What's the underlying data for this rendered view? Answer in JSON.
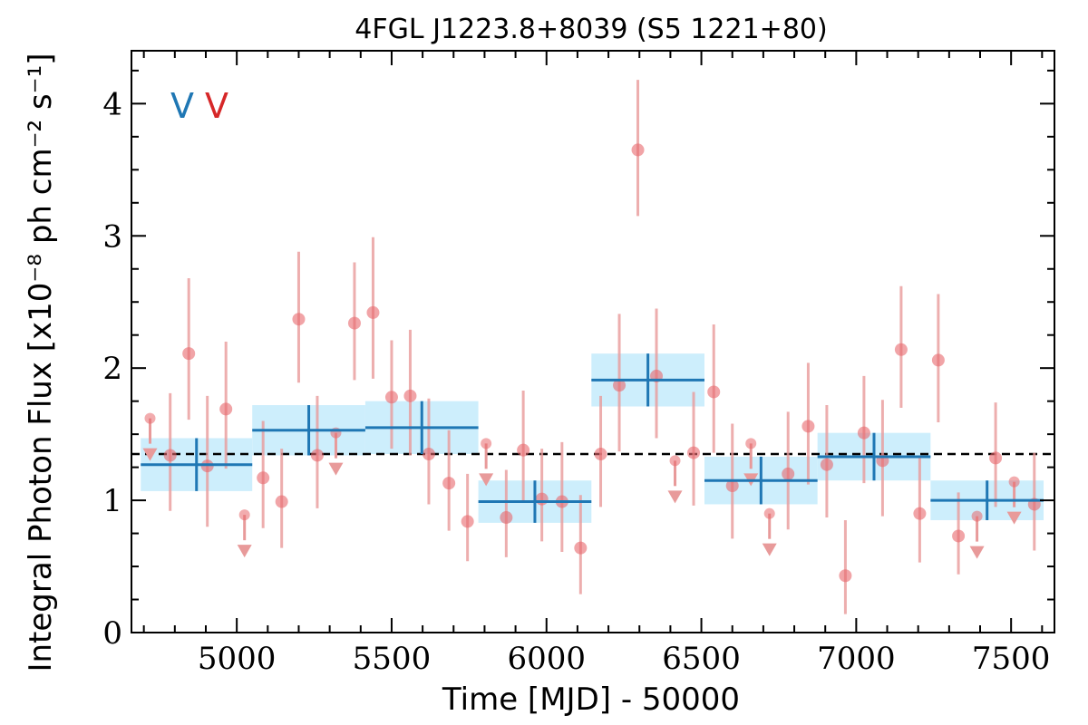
{
  "chart_data": {
    "type": "scatter",
    "title": "4FGL J1223.8+8039 (S5 1221+80)",
    "xlabel": "Time [MJD] - 50000",
    "ylabel": "Integral Photon Flux [x10⁻⁸ ph cm⁻² s⁻¹]",
    "xlim": [
      4660,
      7640
    ],
    "ylim": [
      0,
      4.4
    ],
    "x_ticks": [
      5000,
      5500,
      6000,
      6500,
      7000,
      7500
    ],
    "y_ticks": [
      0,
      1,
      2,
      3,
      4
    ],
    "grid": false,
    "variability_flags": [
      {
        "text": "V",
        "color": "#1f77b4"
      },
      {
        "text": "V",
        "color": "#d62728"
      }
    ],
    "mean_flux": 1.35,
    "colors": {
      "points": "#e8686c",
      "points_error": "#e89a9a",
      "blocks": "#1f77b4",
      "block_band": "#cdeefc",
      "mean_line": "#000000"
    },
    "series": [
      {
        "name": "",
        "kind": "bayesian_blocks",
        "blocks": [
          {
            "x_start": 4690,
            "x_end": 5050,
            "value": 1.27,
            "err": 0.2
          },
          {
            "x_start": 5050,
            "x_end": 5415,
            "value": 1.53,
            "err": 0.19
          },
          {
            "x_start": 5415,
            "x_end": 5780,
            "value": 1.55,
            "err": 0.2
          },
          {
            "x_start": 5780,
            "x_end": 6145,
            "value": 0.99,
            "err": 0.16
          },
          {
            "x_start": 6145,
            "x_end": 6510,
            "value": 1.91,
            "err": 0.2
          },
          {
            "x_start": 6510,
            "x_end": 6875,
            "value": 1.15,
            "err": 0.18
          },
          {
            "x_start": 6875,
            "x_end": 7240,
            "value": 1.33,
            "err": 0.18
          },
          {
            "x_start": 7240,
            "x_end": 7605,
            "value": 1.0,
            "err": 0.15
          }
        ]
      },
      {
        "name": "",
        "kind": "light_curve",
        "points": [
          {
            "x": 4720,
            "y": 1.62,
            "ul": true
          },
          {
            "x": 4785,
            "y": 1.34,
            "err_lo": 0.42,
            "err_hi": 0.47
          },
          {
            "x": 4845,
            "y": 2.11,
            "err_lo": 0.5,
            "err_hi": 0.57
          },
          {
            "x": 4905,
            "y": 1.26,
            "err_lo": 0.46,
            "err_hi": 0.53
          },
          {
            "x": 4965,
            "y": 1.69,
            "err_lo": 0.45,
            "err_hi": 0.51
          },
          {
            "x": 5025,
            "y": 0.89,
            "ul": true
          },
          {
            "x": 5085,
            "y": 1.17,
            "err_lo": 0.38,
            "err_hi": 0.43
          },
          {
            "x": 5145,
            "y": 0.99,
            "err_lo": 0.35,
            "err_hi": 0.4
          },
          {
            "x": 5200,
            "y": 2.37,
            "err_lo": 0.48,
            "err_hi": 0.51
          },
          {
            "x": 5260,
            "y": 1.34,
            "err_lo": 0.4,
            "err_hi": 0.45
          },
          {
            "x": 5320,
            "y": 1.51,
            "ul": true
          },
          {
            "x": 5380,
            "y": 2.34,
            "err_lo": 0.43,
            "err_hi": 0.46
          },
          {
            "x": 5440,
            "y": 2.42,
            "err_lo": 0.5,
            "err_hi": 0.57
          },
          {
            "x": 5500,
            "y": 1.78,
            "err_lo": 0.39,
            "err_hi": 0.43
          },
          {
            "x": 5560,
            "y": 1.79,
            "err_lo": 0.45,
            "err_hi": 0.5
          },
          {
            "x": 5620,
            "y": 1.35,
            "err_lo": 0.38,
            "err_hi": 0.42
          },
          {
            "x": 5685,
            "y": 1.13,
            "err_lo": 0.36,
            "err_hi": 0.4
          },
          {
            "x": 5745,
            "y": 0.84,
            "err_lo": 0.3,
            "err_hi": 0.36
          },
          {
            "x": 5805,
            "y": 1.43,
            "ul": true
          },
          {
            "x": 5870,
            "y": 0.87,
            "err_lo": 0.3,
            "err_hi": 0.36
          },
          {
            "x": 5925,
            "y": 1.38,
            "err_lo": 0.4,
            "err_hi": 0.45
          },
          {
            "x": 5985,
            "y": 1.01,
            "err_lo": 0.32,
            "err_hi": 0.38
          },
          {
            "x": 6050,
            "y": 0.99,
            "err_lo": 0.38,
            "err_hi": 0.45
          },
          {
            "x": 6110,
            "y": 0.64,
            "err_lo": 0.35,
            "err_hi": 0.4
          },
          {
            "x": 6175,
            "y": 1.35,
            "err_lo": 0.4,
            "err_hi": 0.44
          },
          {
            "x": 6235,
            "y": 1.87,
            "err_lo": 0.5,
            "err_hi": 0.54
          },
          {
            "x": 6295,
            "y": 3.65,
            "err_lo": 0.5,
            "err_hi": 0.53
          },
          {
            "x": 6355,
            "y": 1.94,
            "err_lo": 0.47,
            "err_hi": 0.51
          },
          {
            "x": 6415,
            "y": 1.3,
            "ul": true
          },
          {
            "x": 6475,
            "y": 1.36,
            "err_lo": 0.4,
            "err_hi": 0.46
          },
          {
            "x": 6540,
            "y": 1.82,
            "err_lo": 0.46,
            "err_hi": 0.51
          },
          {
            "x": 6600,
            "y": 1.11,
            "err_lo": 0.4,
            "err_hi": 0.47
          },
          {
            "x": 6660,
            "y": 1.43,
            "ul": true
          },
          {
            "x": 6720,
            "y": 0.9,
            "ul": true
          },
          {
            "x": 6780,
            "y": 1.2,
            "err_lo": 0.42,
            "err_hi": 0.47
          },
          {
            "x": 6845,
            "y": 1.56,
            "err_lo": 0.44,
            "err_hi": 0.48
          },
          {
            "x": 6905,
            "y": 1.27,
            "err_lo": 0.4,
            "err_hi": 0.45
          },
          {
            "x": 6965,
            "y": 0.43,
            "err_lo": 0.29,
            "err_hi": 0.42
          },
          {
            "x": 7025,
            "y": 1.51,
            "err_lo": 0.38,
            "err_hi": 0.43
          },
          {
            "x": 7085,
            "y": 1.3,
            "err_lo": 0.42,
            "err_hi": 0.46
          },
          {
            "x": 7145,
            "y": 2.14,
            "err_lo": 0.44,
            "err_hi": 0.48
          },
          {
            "x": 7205,
            "y": 0.9,
            "err_lo": 0.37,
            "err_hi": 0.42
          },
          {
            "x": 7265,
            "y": 2.06,
            "err_lo": 0.47,
            "err_hi": 0.5
          },
          {
            "x": 7330,
            "y": 0.73,
            "err_lo": 0.29,
            "err_hi": 0.33
          },
          {
            "x": 7390,
            "y": 0.88,
            "ul": true
          },
          {
            "x": 7450,
            "y": 1.32,
            "err_lo": 0.37,
            "err_hi": 0.42
          },
          {
            "x": 7510,
            "y": 1.14,
            "ul": true
          },
          {
            "x": 7575,
            "y": 0.97,
            "err_lo": 0.35,
            "err_hi": 0.39
          }
        ]
      }
    ]
  }
}
